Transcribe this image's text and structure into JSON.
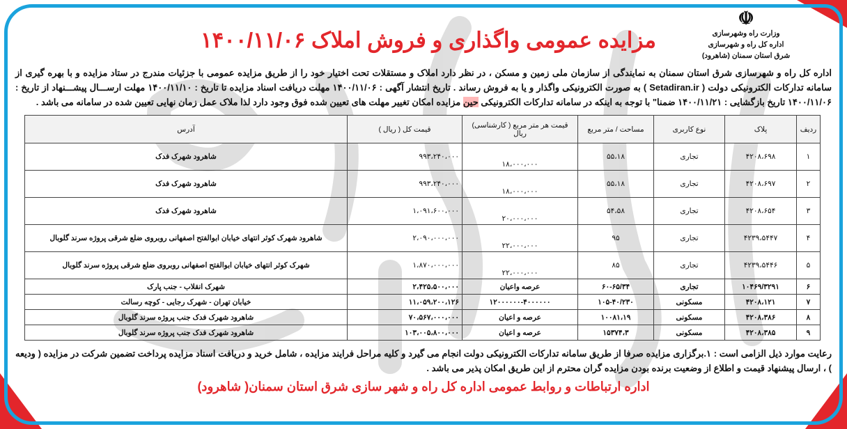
{
  "header": {
    "logo_lines": [
      "وزارت راه وشهرسازی",
      "اداره کل راه و شهرسازی",
      "شرق استان سمنان (شاهرود)"
    ],
    "title": "مزایده عمومی واگذاری و فروش املاک ۱۴۰۰/۱۱/۰۶"
  },
  "intro": {
    "part1": "اداره کل راه و شهرسازی شرق استان سمنان به نمایندگی از سازمان ملی زمین و مسکن ، در نظر دارد املاک و مستقلات تحت اختیار خود را از طریق مزایده عمومی با جزئیات مندرج در ستاد مزایده و با بهره گیری از سامانه تدارکات الکترونیکی دولت ( Setadiran.ir ) به صورت الکترونیکی واگذار و یا به فروش رساند . تاریخ انتشار آگهی : ۱۴۰۰/۱۱/۰۶      مهلت دریافت اسناد مزایده تا تاریخ : ۱۴۰۰/۱۱/۱۰ مهلت ارســـال پیشـــنهاد از تاریخ : ۱۴۰۰/۱۱/۰۶      تاریخ بازگشایی : ۱۴۰۰/۱۱/۲۱ ضمنا\" با توجه به اینکه در سامانه تدارکات الکترونیکی",
    "highlight": "حین",
    "part2": "مزایده امکان تغییر مهلت های تعیین شده فوق وجود دارد لذا ملاک عمل زمان نهایی تعیین شده در سامانه می باشد ."
  },
  "table": {
    "headers": [
      "ردیف",
      "پلاک",
      "نوع کاربری",
      "مساحت / متر مربع",
      "قیمت هر متر مربع ( کارشناسی) ریال",
      "قیمت کل ( ریال )",
      "آدرس"
    ],
    "rows": [
      [
        "۱",
        "۴۲۰۸،۶۹۸",
        "تجاری",
        "۵۵،۱۸",
        "۱۸،۰۰۰،۰۰۰",
        "۹۹۳،۲۴۰،۰۰۰",
        "شاهرود شهرک فدک"
      ],
      [
        "۲",
        "۴۲۰۸،۶۹۷",
        "تجاری",
        "۵۵،۱۸",
        "۱۸،۰۰۰،۰۰۰",
        "۹۹۳،۲۴۰،۰۰۰",
        "شاهرود شهرک فدک"
      ],
      [
        "۳",
        "۴۲۰۸،۶۵۴",
        "تجاری",
        "۵۴،۵۸",
        "۲۰،۰۰۰،۰۰۰",
        "۱،۰۹۱،۶۰۰،۰۰۰",
        "شاهرود شهرک فدک"
      ],
      [
        "۴",
        "۴۲۳۹،۵۴۴۷",
        "تجاری",
        "۹۵",
        "۲۲،۰۰۰،۰۰۰",
        "۲،۰۹۰،۰۰۰،۰۰۰",
        "شاهرود شهرک کوثر انتهای خیابان ابوالفتح اصفهانی روبروی ضلع شرقی پروژه سرند گلوبال"
      ],
      [
        "۵",
        "۴۲۳۹،۵۴۴۶",
        "تجاری",
        "۸۵",
        "۲۲،۰۰۰،۰۰۰",
        "۱،۸۷۰،۰۰۰،۰۰۰",
        "شهرک کوثر انتهای خیابان ابوالفتح اصفهانی روبروی ضلع شرقی پروژه سرند گلوبال"
      ],
      [
        "۶",
        "۱۰۴۶۹/۳۲۹۱",
        "تجاری",
        "۶۰-۶۵/۳۴",
        "عرصه واعیان",
        "۲،۴۲۵،۵۰۰،۰۰۰",
        "شهرک انقلاب - جنب پارک"
      ],
      [
        "۷",
        "۴۲۰۸،۱۲۱",
        "مسکونی",
        "۱۰۵-۴۰/۲۳۰",
        "۱۲۰۰۰۰۰۰-۴۰۰۰۰۰۰",
        "۱۱،۰۵۹،۲۰۰،۱۲۶",
        "خیابان تهران - شهرک رجایی - کوچه رسالت"
      ],
      [
        "۸",
        "۴۲۰۸،۳۸۶",
        "مسکونی",
        "۱۰۰۸۱،۱۹",
        "عرصه و اعیان",
        "۷۰،۵۶۷،۰۰۰،۰۰۰",
        "شاهرود شهرک فدک جنب پروژه سرند گلوبال"
      ],
      [
        "۹",
        "۴۲۰۸،۳۸۵",
        "مسکونی",
        "۱۵۳۷۴،۳",
        "عرصه و اعیان",
        "۱۰۳،۰۰۵،۸۰۰،۰۰۰",
        "شاهرود شهرک فدک جنب پروژه سرند گلوبال"
      ]
    ]
  },
  "footer": {
    "note": "رعایت موارد ذیل الزامی است : ۱.برگزاری مزایده صرفا از طریق سامانه تدارکات الکترونیکی دولت انجام می گیرد و کلیه مراحل فرایند مزایده ، شامل خرید و دریافت اسناد مزایده پرداخت تضمین شرکت در مزایده ( ودیعه ) ، ارسال پیشنهاد قیمت و اطلاع از وضعیت برنده بودن مزایده گران محترم از این طریق امکان پذیر می باشد .",
    "signature": "اداره ارتباطات و روابط عمومی اداره کل راه و شهر سازی شرق استان سمنان( شاهرود)"
  },
  "colors": {
    "frame": "#1aa3dd",
    "accent": "#e3262b"
  }
}
